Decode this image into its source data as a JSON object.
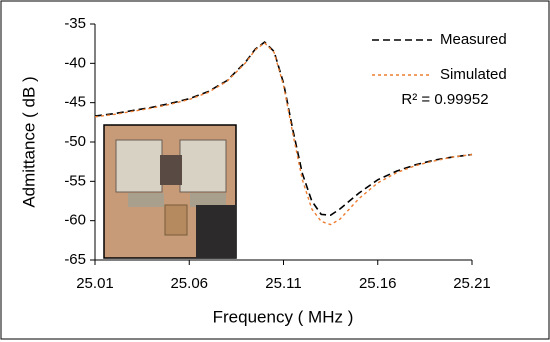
{
  "chart_data": {
    "type": "line",
    "x_label": "Frequency ( MHz )",
    "y_label": "Admittance ( dB )",
    "annotation": "R² = 0.99952",
    "x": [
      25.01,
      25.02,
      25.03,
      25.04,
      25.05,
      25.06,
      25.07,
      25.08,
      25.09,
      25.095,
      25.1,
      25.105,
      25.11,
      25.115,
      25.12,
      25.125,
      25.13,
      25.135,
      25.14,
      25.15,
      25.16,
      25.17,
      25.18,
      25.19,
      25.2,
      25.21
    ],
    "series": [
      {
        "name": "Measured",
        "color": "#000000",
        "values": [
          -46.7,
          -46.4,
          -46.0,
          -45.6,
          -45.1,
          -44.5,
          -43.6,
          -42.2,
          -39.8,
          -38.2,
          -37.3,
          -38.5,
          -42.5,
          -48.5,
          -54.0,
          -57.5,
          -59.2,
          -59.3,
          -58.5,
          -56.5,
          -54.8,
          -53.7,
          -52.9,
          -52.3,
          -51.9,
          -51.6
        ]
      },
      {
        "name": "Simulated",
        "color": "#ed7d31",
        "values": [
          -46.8,
          -46.5,
          -46.1,
          -45.7,
          -45.2,
          -44.6,
          -43.7,
          -42.3,
          -39.9,
          -38.3,
          -37.4,
          -38.6,
          -42.8,
          -49.0,
          -54.8,
          -58.5,
          -60.1,
          -60.5,
          -59.8,
          -57.2,
          -55.2,
          -53.9,
          -53.0,
          -52.4,
          -51.9,
          -51.6
        ]
      }
    ],
    "xlim": [
      25.01,
      25.21
    ],
    "xticks": [
      25.01,
      25.06,
      25.11,
      25.16,
      25.21
    ],
    "ylim": [
      -65,
      -35
    ],
    "yticks": [
      -65,
      -60,
      -55,
      -50,
      -45,
      -40,
      -35
    ],
    "grid": false
  }
}
